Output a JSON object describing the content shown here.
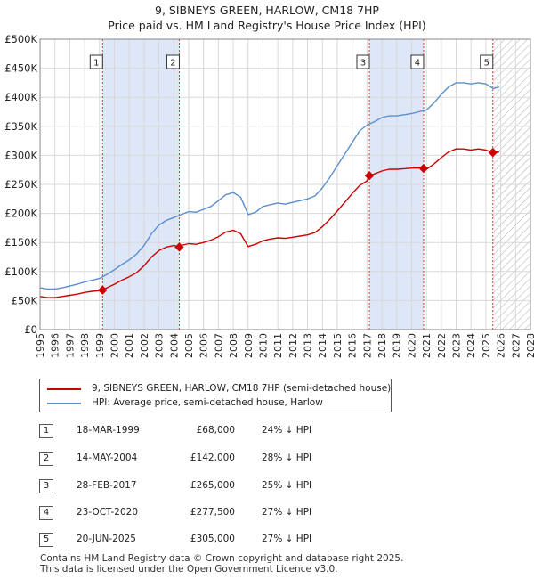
{
  "title_line1": "9, SIBNEYS GREEN, HARLOW, CM18 7HP",
  "title_line2": "Price paid vs. HM Land Registry's House Price Index (HPI)",
  "legend": {
    "red_label": "9, SIBNEYS GREEN, HARLOW, CM18 7HP (semi-detached house)",
    "blue_label": "HPI: Average price, semi-detached house, Harlow",
    "red_color": "#cc0000",
    "blue_color": "#5b8fd0"
  },
  "transactions": [
    {
      "num": "1",
      "date": "18-MAR-1999",
      "price": "£68,000",
      "hpi": "24% ↓ HPI"
    },
    {
      "num": "2",
      "date": "14-MAY-2004",
      "price": "£142,000",
      "hpi": "28% ↓ HPI"
    },
    {
      "num": "3",
      "date": "28-FEB-2017",
      "price": "£265,000",
      "hpi": "25% ↓ HPI"
    },
    {
      "num": "4",
      "date": "23-OCT-2020",
      "price": "£277,500",
      "hpi": "27% ↓ HPI"
    },
    {
      "num": "5",
      "date": "20-JUN-2025",
      "price": "£305,000",
      "hpi": "27% ↓ HPI"
    }
  ],
  "footer_line1": "Contains HM Land Registry data © Crown copyright and database right 2025.",
  "footer_line2": "This data is licensed under the Open Government Licence v3.0.",
  "chart_data": {
    "type": "line",
    "xlim": [
      1995,
      2028
    ],
    "ylim": [
      0,
      500000
    ],
    "x_ticks": [
      1995,
      1996,
      1997,
      1998,
      1999,
      2000,
      2001,
      2002,
      2003,
      2004,
      2005,
      2006,
      2007,
      2008,
      2009,
      2010,
      2011,
      2012,
      2013,
      2014,
      2015,
      2016,
      2017,
      2018,
      2019,
      2020,
      2021,
      2022,
      2023,
      2024,
      2025,
      2026,
      2027,
      2028
    ],
    "y_ticks": [
      {
        "value": 0,
        "label": "£0"
      },
      {
        "value": 50000,
        "label": "£50K"
      },
      {
        "value": 100000,
        "label": "£100K"
      },
      {
        "value": 150000,
        "label": "£150K"
      },
      {
        "value": 200000,
        "label": "£200K"
      },
      {
        "value": 250000,
        "label": "£250K"
      },
      {
        "value": 300000,
        "label": "£300K"
      },
      {
        "value": 350000,
        "label": "£350K"
      },
      {
        "value": 400000,
        "label": "£400K"
      },
      {
        "value": 450000,
        "label": "£450K"
      },
      {
        "value": 500000,
        "label": "£500K"
      }
    ],
    "shaded_periods": [
      [
        1999.21,
        2004.37
      ],
      [
        2017.16,
        2020.81
      ]
    ],
    "future_hatch_from": 2025.47,
    "sale_markers": [
      {
        "label": "1",
        "x": 1999.21,
        "y": 68000
      },
      {
        "label": "2",
        "x": 2004.37,
        "y": 142000
      },
      {
        "label": "3",
        "x": 2017.16,
        "y": 265000
      },
      {
        "label": "4",
        "x": 2020.81,
        "y": 277500
      },
      {
        "label": "5",
        "x": 2025.47,
        "y": 305000
      }
    ],
    "series": [
      {
        "name": "HPI: Average price, semi-detached house, Harlow",
        "color": "#5b8fd0",
        "points": [
          [
            1995.0,
            72000
          ],
          [
            1995.5,
            70000
          ],
          [
            1996.0,
            70000
          ],
          [
            1996.5,
            72000
          ],
          [
            1997.0,
            75000
          ],
          [
            1997.5,
            78000
          ],
          [
            1998.0,
            82000
          ],
          [
            1998.5,
            85000
          ],
          [
            1999.0,
            88000
          ],
          [
            1999.5,
            95000
          ],
          [
            2000.0,
            103000
          ],
          [
            2000.5,
            112000
          ],
          [
            2001.0,
            120000
          ],
          [
            2001.5,
            130000
          ],
          [
            2002.0,
            145000
          ],
          [
            2002.5,
            165000
          ],
          [
            2003.0,
            180000
          ],
          [
            2003.5,
            188000
          ],
          [
            2004.0,
            193000
          ],
          [
            2004.5,
            198000
          ],
          [
            2005.0,
            203000
          ],
          [
            2005.5,
            202000
          ],
          [
            2006.0,
            207000
          ],
          [
            2006.5,
            212000
          ],
          [
            2007.0,
            222000
          ],
          [
            2007.5,
            232000
          ],
          [
            2008.0,
            236000
          ],
          [
            2008.5,
            228000
          ],
          [
            2009.0,
            198000
          ],
          [
            2009.5,
            202000
          ],
          [
            2010.0,
            212000
          ],
          [
            2010.5,
            215000
          ],
          [
            2011.0,
            218000
          ],
          [
            2011.5,
            216000
          ],
          [
            2012.0,
            219000
          ],
          [
            2012.5,
            222000
          ],
          [
            2013.0,
            225000
          ],
          [
            2013.5,
            230000
          ],
          [
            2014.0,
            244000
          ],
          [
            2014.5,
            262000
          ],
          [
            2015.0,
            282000
          ],
          [
            2015.5,
            302000
          ],
          [
            2016.0,
            322000
          ],
          [
            2016.5,
            342000
          ],
          [
            2017.0,
            352000
          ],
          [
            2017.5,
            358000
          ],
          [
            2018.0,
            365000
          ],
          [
            2018.5,
            368000
          ],
          [
            2019.0,
            368000
          ],
          [
            2019.5,
            370000
          ],
          [
            2020.0,
            372000
          ],
          [
            2020.5,
            375000
          ],
          [
            2021.0,
            378000
          ],
          [
            2021.5,
            390000
          ],
          [
            2022.0,
            405000
          ],
          [
            2022.5,
            418000
          ],
          [
            2023.0,
            425000
          ],
          [
            2023.5,
            425000
          ],
          [
            2024.0,
            423000
          ],
          [
            2024.5,
            425000
          ],
          [
            2025.0,
            423000
          ],
          [
            2025.5,
            415000
          ],
          [
            2025.9,
            418000
          ]
        ]
      },
      {
        "name": "9, SIBNEYS GREEN, HARLOW, CM18 7HP (semi-detached house)",
        "color": "#cc0000",
        "points": [
          [
            1995.0,
            57000
          ],
          [
            1995.5,
            55000
          ],
          [
            1996.0,
            55000
          ],
          [
            1996.5,
            57000
          ],
          [
            1997.0,
            59000
          ],
          [
            1997.5,
            61000
          ],
          [
            1998.0,
            64000
          ],
          [
            1998.5,
            66000
          ],
          [
            1999.0,
            67000
          ],
          [
            1999.21,
            68000
          ],
          [
            1999.5,
            72000
          ],
          [
            2000.0,
            78000
          ],
          [
            2000.5,
            85000
          ],
          [
            2001.0,
            91000
          ],
          [
            2001.5,
            98000
          ],
          [
            2002.0,
            110000
          ],
          [
            2002.5,
            125000
          ],
          [
            2003.0,
            136000
          ],
          [
            2003.5,
            142000
          ],
          [
            2004.0,
            145000
          ],
          [
            2004.37,
            142000
          ],
          [
            2004.5,
            145000
          ],
          [
            2005.0,
            148000
          ],
          [
            2005.5,
            147000
          ],
          [
            2006.0,
            150000
          ],
          [
            2006.5,
            154000
          ],
          [
            2007.0,
            160000
          ],
          [
            2007.5,
            168000
          ],
          [
            2008.0,
            171000
          ],
          [
            2008.5,
            165000
          ],
          [
            2009.0,
            143000
          ],
          [
            2009.5,
            147000
          ],
          [
            2010.0,
            153000
          ],
          [
            2010.5,
            156000
          ],
          [
            2011.0,
            158000
          ],
          [
            2011.5,
            157000
          ],
          [
            2012.0,
            159000
          ],
          [
            2012.5,
            161000
          ],
          [
            2013.0,
            163000
          ],
          [
            2013.5,
            167000
          ],
          [
            2014.0,
            177000
          ],
          [
            2014.5,
            190000
          ],
          [
            2015.0,
            204000
          ],
          [
            2015.5,
            219000
          ],
          [
            2016.0,
            234000
          ],
          [
            2016.5,
            248000
          ],
          [
            2017.0,
            256000
          ],
          [
            2017.16,
            265000
          ],
          [
            2017.5,
            268000
          ],
          [
            2018.0,
            273000
          ],
          [
            2018.5,
            276000
          ],
          [
            2019.0,
            276000
          ],
          [
            2019.5,
            277000
          ],
          [
            2020.0,
            278000
          ],
          [
            2020.5,
            278000
          ],
          [
            2020.81,
            277500
          ],
          [
            2021.0,
            276000
          ],
          [
            2021.5,
            285000
          ],
          [
            2022.0,
            296000
          ],
          [
            2022.5,
            306000
          ],
          [
            2023.0,
            311000
          ],
          [
            2023.5,
            311000
          ],
          [
            2024.0,
            309000
          ],
          [
            2024.5,
            311000
          ],
          [
            2025.0,
            309000
          ],
          [
            2025.47,
            305000
          ],
          [
            2025.9,
            306000
          ]
        ]
      }
    ]
  }
}
